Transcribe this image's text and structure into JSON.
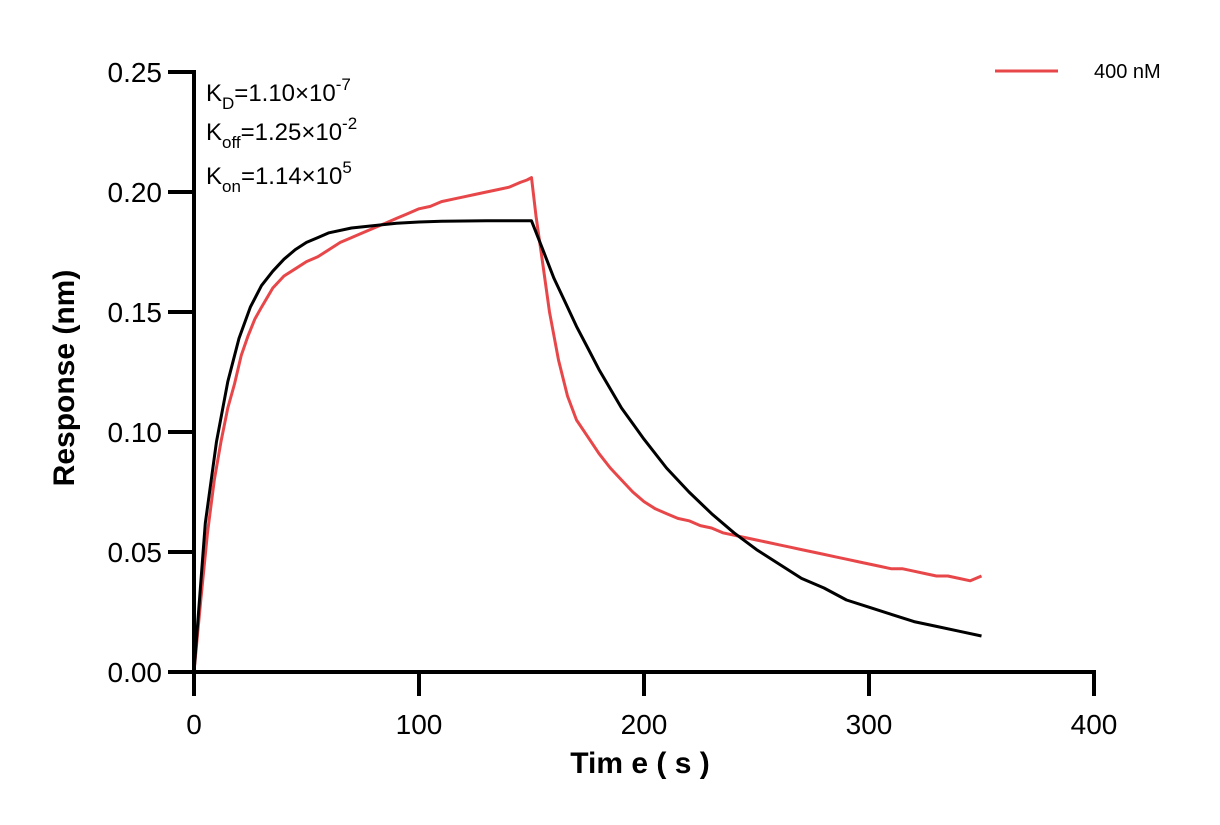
{
  "chart_data": {
    "type": "line",
    "title": "",
    "xlabel": "Tim e ( s )",
    "ylabel": "Response (nm)",
    "xlim": [
      0,
      400
    ],
    "ylim": [
      0,
      0.25
    ],
    "x_ticks": [
      0,
      100,
      200,
      300,
      400
    ],
    "x_tick_labels": [
      "0",
      "100",
      "200",
      "300",
      "400"
    ],
    "y_ticks": [
      0,
      0.05,
      0.1,
      0.15,
      0.2,
      0.25
    ],
    "y_tick_labels": [
      "0.00",
      "0.05",
      "0.10",
      "0.15",
      "0.20",
      "0.25"
    ],
    "grid": false,
    "legend_position": "top-right",
    "annotations": {
      "kd": {
        "symbol": "K",
        "sub": "D",
        "eq": "=1.10×10",
        "exp": "-7"
      },
      "koff": {
        "symbol": "K",
        "sub": "off",
        "eq": "=1.25×10",
        "exp": "-2"
      },
      "kon": {
        "symbol": "K",
        "sub": "on",
        "eq": "=1.14×10",
        "exp": "5"
      }
    },
    "series": [
      {
        "name": "400 nM",
        "color": "#e8474a",
        "x": [
          0,
          3,
          6,
          9,
          12,
          15,
          18,
          21,
          24,
          27,
          30,
          35,
          40,
          45,
          50,
          55,
          60,
          65,
          70,
          75,
          80,
          85,
          90,
          95,
          100,
          105,
          110,
          115,
          120,
          125,
          130,
          135,
          140,
          145,
          148,
          150,
          152,
          155,
          158,
          162,
          166,
          170,
          175,
          180,
          185,
          190,
          195,
          200,
          205,
          210,
          215,
          220,
          225,
          230,
          235,
          240,
          245,
          250,
          255,
          260,
          265,
          270,
          275,
          280,
          285,
          290,
          295,
          300,
          305,
          310,
          315,
          320,
          325,
          330,
          335,
          340,
          345,
          350
        ],
        "y": [
          0.0,
          0.03,
          0.058,
          0.08,
          0.096,
          0.11,
          0.12,
          0.132,
          0.14,
          0.147,
          0.152,
          0.16,
          0.165,
          0.168,
          0.171,
          0.173,
          0.176,
          0.179,
          0.181,
          0.183,
          0.185,
          0.187,
          0.189,
          0.191,
          0.193,
          0.194,
          0.196,
          0.197,
          0.198,
          0.199,
          0.2,
          0.201,
          0.202,
          0.204,
          0.205,
          0.206,
          0.19,
          0.17,
          0.15,
          0.13,
          0.115,
          0.105,
          0.098,
          0.091,
          0.085,
          0.08,
          0.075,
          0.071,
          0.068,
          0.066,
          0.064,
          0.063,
          0.061,
          0.06,
          0.058,
          0.057,
          0.056,
          0.055,
          0.054,
          0.053,
          0.052,
          0.051,
          0.05,
          0.049,
          0.048,
          0.047,
          0.046,
          0.045,
          0.044,
          0.043,
          0.043,
          0.042,
          0.041,
          0.04,
          0.04,
          0.039,
          0.038,
          0.04
        ]
      },
      {
        "name": "",
        "color": "#000000",
        "x": [
          0,
          5,
          10,
          15,
          20,
          25,
          30,
          35,
          40,
          45,
          50,
          55,
          60,
          70,
          80,
          90,
          100,
          110,
          120,
          130,
          140,
          150,
          155,
          160,
          165,
          170,
          175,
          180,
          190,
          200,
          210,
          220,
          230,
          240,
          250,
          260,
          270,
          280,
          290,
          300,
          310,
          320,
          330,
          340,
          350
        ],
        "y": [
          0.0,
          0.062,
          0.096,
          0.121,
          0.139,
          0.152,
          0.161,
          0.167,
          0.172,
          0.176,
          0.179,
          0.181,
          0.183,
          0.185,
          0.186,
          0.187,
          0.1875,
          0.1878,
          0.1879,
          0.188,
          0.188,
          0.188,
          0.176,
          0.164,
          0.154,
          0.144,
          0.135,
          0.126,
          0.11,
          0.097,
          0.085,
          0.075,
          0.066,
          0.058,
          0.051,
          0.045,
          0.039,
          0.035,
          0.03,
          0.027,
          0.024,
          0.021,
          0.019,
          0.017,
          0.015
        ]
      }
    ]
  }
}
